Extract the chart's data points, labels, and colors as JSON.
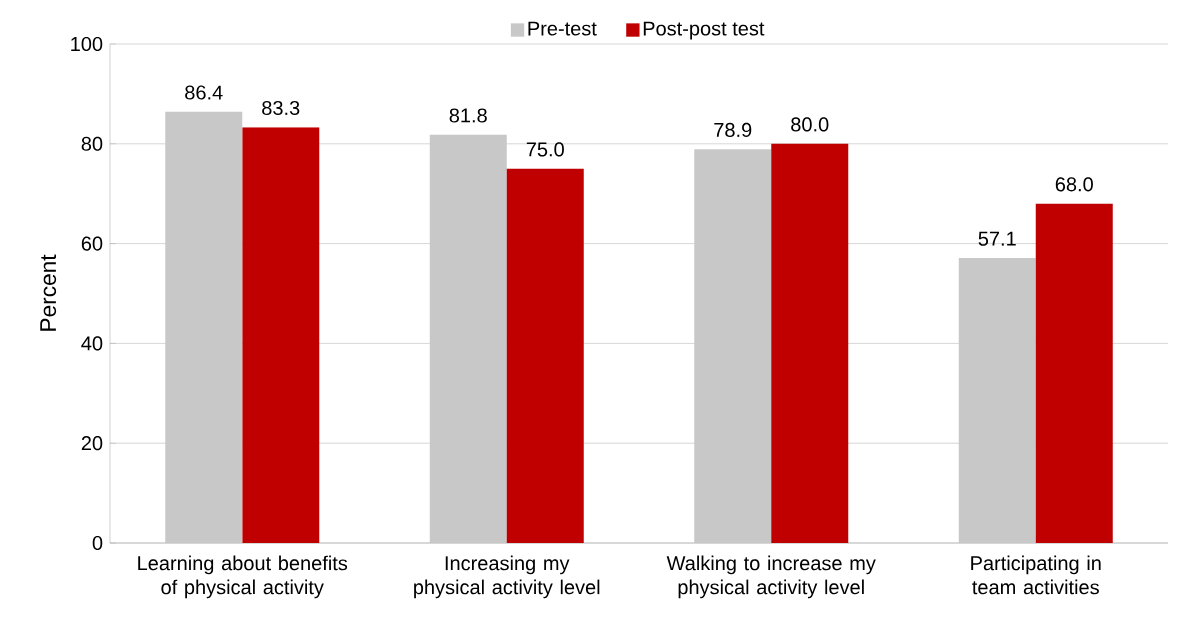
{
  "chart_data": {
    "type": "bar",
    "ylabel": "Percent",
    "categories": [
      "Learning about benefits of physical activity",
      "Increasing my physical activity level",
      "Walking to increase my physical activity level",
      "Participating in team activities"
    ],
    "series": [
      {
        "name": "Pre-test",
        "color": "#c8c8c8",
        "values": [
          86.4,
          81.8,
          78.9,
          57.1
        ],
        "value_labels": [
          "86.4",
          "81.8",
          "78.9",
          "57.1"
        ]
      },
      {
        "name": "Post-post test",
        "color": "#c00000",
        "values": [
          83.3,
          75.0,
          80.0,
          68.0
        ],
        "value_labels": [
          "83.3",
          "75.0",
          "80.0",
          "68.0"
        ]
      }
    ],
    "ylim": [
      0,
      100
    ],
    "yticks": [
      0,
      20,
      40,
      60,
      80,
      100
    ],
    "grid": "y",
    "legend": "top"
  }
}
